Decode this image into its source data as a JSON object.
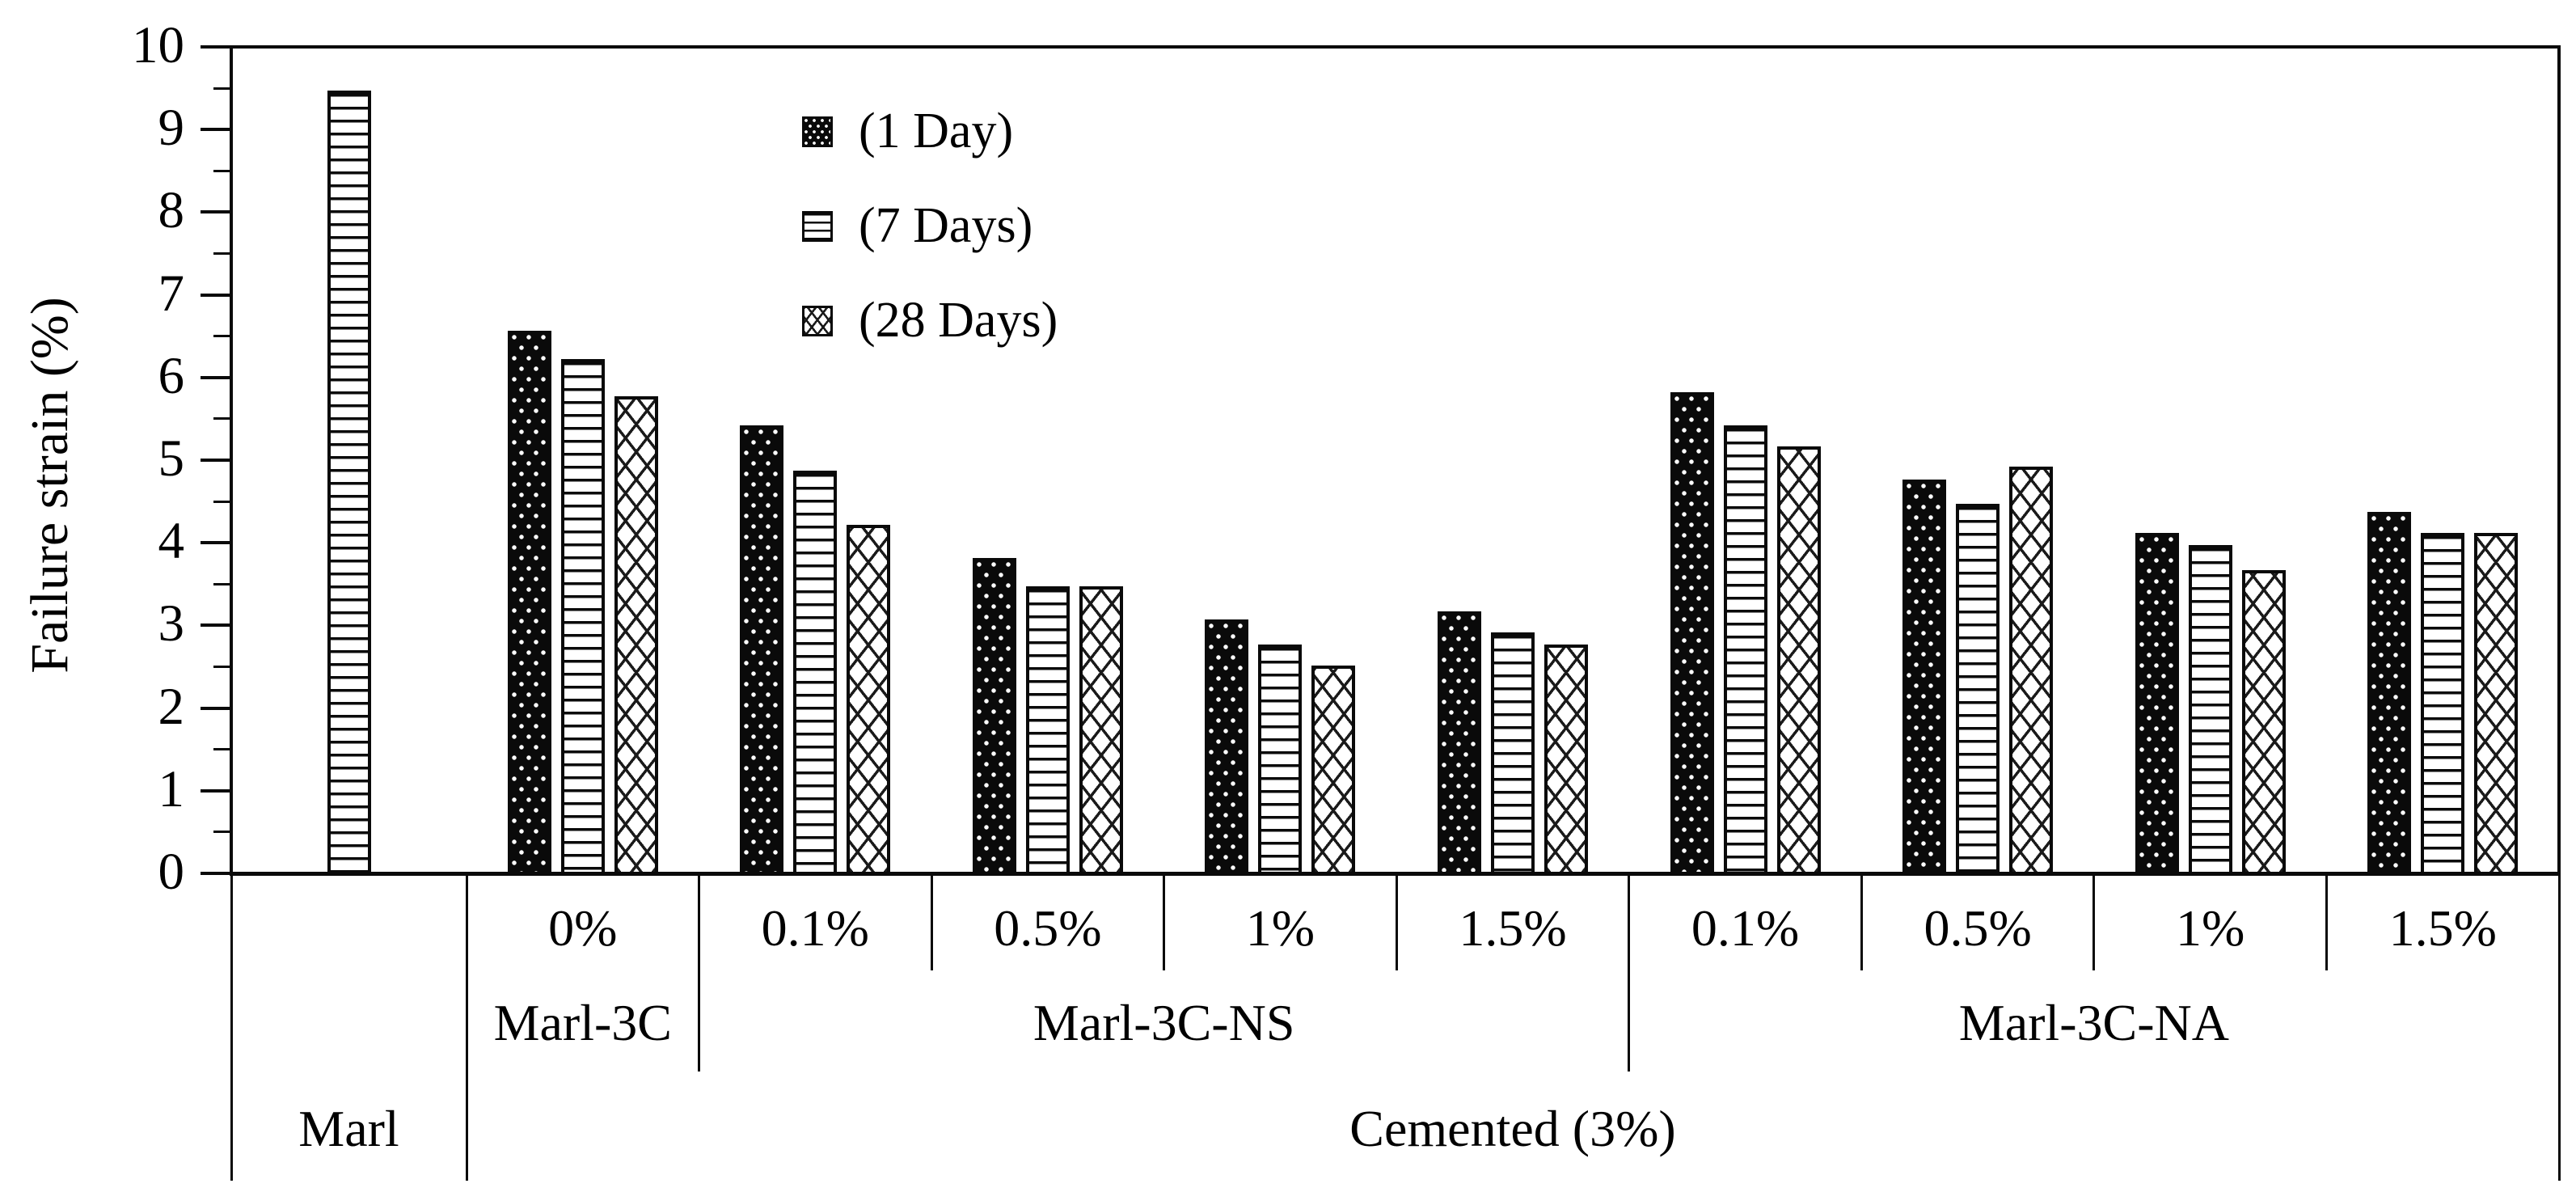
{
  "figure_title": "",
  "chart_data": {
    "type": "bar",
    "title": "",
    "xlabel": "",
    "ylabel": "Failure strain (%)",
    "ylim": [
      0,
      10
    ],
    "y_major_tick_step": 1,
    "y_minor_tick_step": 0.5,
    "y_tick_labels": [
      "0",
      "1",
      "2",
      "3",
      "4",
      "5",
      "6",
      "7",
      "8",
      "9",
      "10"
    ],
    "grid": false,
    "legend_position": "upper left inside plot",
    "legend": [
      {
        "label": "(1 Day)",
        "pattern": "dots"
      },
      {
        "label": "(7 Days)",
        "pattern": "hlines"
      },
      {
        "label": "(28 Days)",
        "pattern": "cross"
      }
    ],
    "series_names": [
      "1 Day",
      "7 Days",
      "28 Days"
    ],
    "groups": [
      {
        "pct_label": "",
        "values": [
          null,
          9.45,
          null
        ]
      },
      {
        "pct_label": "0%",
        "values": [
          6.55,
          6.2,
          5.75
        ]
      },
      {
        "pct_label": "0.1%",
        "values": [
          5.4,
          4.85,
          4.2
        ]
      },
      {
        "pct_label": "0.5%",
        "values": [
          3.8,
          3.45,
          3.45
        ]
      },
      {
        "pct_label": "1%",
        "values": [
          3.05,
          2.75,
          2.5
        ]
      },
      {
        "pct_label": "1.5%",
        "values": [
          3.15,
          2.9,
          2.75
        ]
      },
      {
        "pct_label": "0.1%",
        "values": [
          5.8,
          5.4,
          5.15
        ]
      },
      {
        "pct_label": "0.5%",
        "values": [
          4.75,
          4.45,
          4.9
        ]
      },
      {
        "pct_label": "1%",
        "values": [
          4.1,
          3.95,
          3.65
        ]
      },
      {
        "pct_label": "1.5%",
        "values": [
          4.35,
          4.1,
          4.1
        ]
      }
    ],
    "tier2_labels": [
      {
        "label": "Marl-3C",
        "from_cell": 1,
        "to_cell": 1
      },
      {
        "label": "Marl-3C-NS",
        "from_cell": 2,
        "to_cell": 5
      },
      {
        "label": "Marl-3C-NA",
        "from_cell": 6,
        "to_cell": 9
      }
    ],
    "tier3_labels": [
      {
        "label": "Marl",
        "from_cell": 0,
        "to_cell": 0
      },
      {
        "label": "Cemented (3%)",
        "from_cell": 1,
        "to_cell": 9
      }
    ],
    "colors": {
      "ink": "#0a0a0a",
      "background": "#ffffff"
    }
  }
}
